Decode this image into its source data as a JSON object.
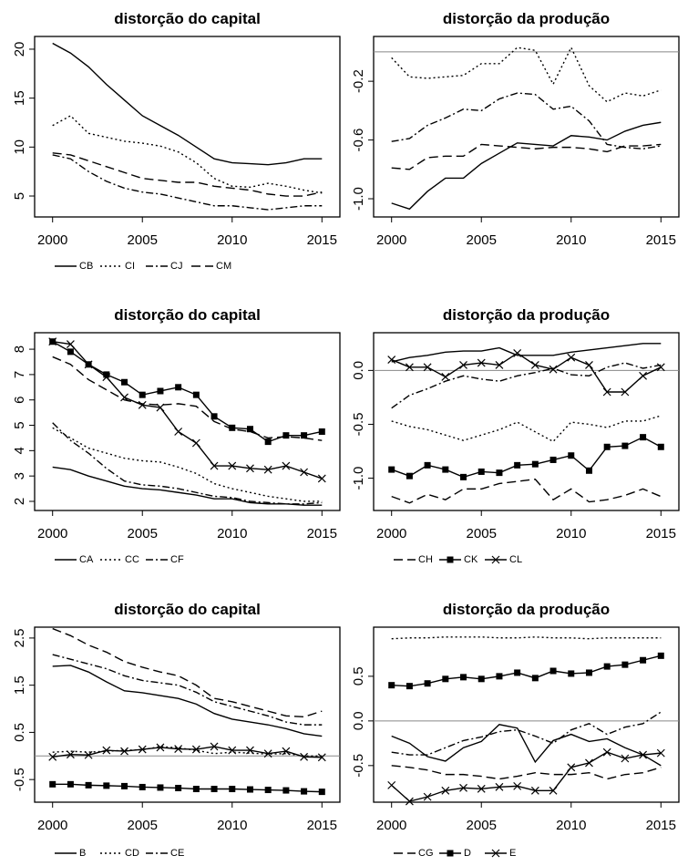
{
  "chart_data": [
    {
      "type": "line",
      "title": "distorção do capital",
      "x": [
        2000,
        2001,
        2002,
        2003,
        2004,
        2005,
        2006,
        2007,
        2008,
        2009,
        2010,
        2011,
        2012,
        2013,
        2014,
        2015
      ],
      "xlim": [
        1999,
        2016
      ],
      "xticks": [
        2000,
        2005,
        2010,
        2015
      ],
      "ylim": [
        2.86,
        21.3
      ],
      "yticks": [
        5,
        10,
        15,
        20
      ],
      "series": [
        {
          "name": "CB",
          "color": "#000000",
          "dash": "solid",
          "values": [
            20.6,
            19.6,
            18.2,
            16.4,
            14.8,
            13.2,
            12.2,
            11.2,
            10,
            8.8,
            8.4,
            8.3,
            8.2,
            8.4,
            8.8,
            8.8
          ]
        },
        {
          "name": "CI",
          "color": "#000000",
          "dash": "dotted",
          "values": [
            12.2,
            13.2,
            11.4,
            11,
            10.6,
            10.4,
            10.1,
            9.5,
            8.4,
            6.8,
            6.0,
            5.9,
            6.3,
            6.0,
            5.6,
            5.3
          ]
        },
        {
          "name": "CJ",
          "color": "#000000",
          "dash": "dashdot",
          "values": [
            9.2,
            8.8,
            7.5,
            6.5,
            5.8,
            5.4,
            5.2,
            4.8,
            4.4,
            4.0,
            4.0,
            3.8,
            3.6,
            3.8,
            4.0,
            4.0
          ]
        },
        {
          "name": "CM",
          "color": "#000000",
          "dash": "longdash",
          "values": [
            9.4,
            9.2,
            8.6,
            8,
            7.4,
            6.8,
            6.6,
            6.4,
            6.4,
            6.0,
            5.8,
            5.6,
            5.2,
            5.0,
            5.0,
            5.4
          ]
        }
      ]
    },
    {
      "type": "line",
      "title": "distorção da produção",
      "x": [
        2000,
        2001,
        2002,
        2003,
        2004,
        2005,
        2006,
        2007,
        2008,
        2009,
        2010,
        2011,
        2012,
        2013,
        2014,
        2015
      ],
      "xlim": [
        1999,
        2016
      ],
      "xticks": [
        2000,
        2005,
        2010,
        2015
      ],
      "ylim": [
        -1.124,
        0.105
      ],
      "yticks": [
        {
          "value": -1.0,
          "label": "-1.0"
        },
        -0.6,
        -0.2
      ],
      "hline": 0,
      "series": [
        {
          "color": "#000000",
          "dash": "solid",
          "values": [
            -1.03,
            -1.07,
            -0.95,
            -0.86,
            -0.86,
            -0.76,
            -0.69,
            -0.62,
            -0.63,
            -0.64,
            -0.57,
            -0.58,
            -0.6,
            -0.54,
            -0.5,
            -0.48
          ]
        },
        {
          "color": "#000000",
          "dash": "dotted",
          "values": [
            -0.04,
            -0.17,
            -0.18,
            -0.17,
            -0.16,
            -0.08,
            -0.08,
            0.03,
            0.01,
            -0.22,
            0.03,
            -0.23,
            -0.34,
            -0.28,
            -0.3,
            -0.26
          ]
        },
        {
          "color": "#000000",
          "dash": "dashdot",
          "values": [
            -0.61,
            -0.59,
            -0.5,
            -0.45,
            -0.39,
            -0.4,
            -0.32,
            -0.28,
            -0.29,
            -0.39,
            -0.37,
            -0.47,
            -0.63,
            -0.65,
            -0.66,
            -0.64
          ]
        },
        {
          "color": "#000000",
          "dash": "longdash",
          "values": [
            -0.79,
            -0.8,
            -0.72,
            -0.71,
            -0.71,
            -0.63,
            -0.64,
            -0.65,
            -0.66,
            -0.65,
            -0.65,
            -0.66,
            -0.68,
            -0.64,
            -0.64,
            -0.63
          ]
        }
      ]
    },
    {
      "type": "line",
      "title": "distorção do capital",
      "x": [
        2000,
        2001,
        2002,
        2003,
        2004,
        2005,
        2006,
        2007,
        2008,
        2009,
        2010,
        2011,
        2012,
        2013,
        2014,
        2015
      ],
      "xlim": [
        1999,
        2016
      ],
      "xticks": [
        2000,
        2005,
        2010,
        2015
      ],
      "ylim": [
        1.64,
        8.65
      ],
      "yticks": [
        2,
        3,
        4,
        5,
        6,
        7,
        8
      ],
      "series": [
        {
          "name": "CA",
          "color": "#000000",
          "dash": "solid",
          "values": [
            3.35,
            3.25,
            3.0,
            2.8,
            2.6,
            2.5,
            2.45,
            2.35,
            2.25,
            2.1,
            2.1,
            1.95,
            1.9,
            1.9,
            1.85,
            1.85
          ]
        },
        {
          "name": "CC",
          "color": "#000000",
          "dash": "dotted",
          "values": [
            4.9,
            4.5,
            4.1,
            3.9,
            3.7,
            3.6,
            3.55,
            3.35,
            3.1,
            2.7,
            2.5,
            2.35,
            2.2,
            2.1,
            2.0,
            2.0
          ]
        },
        {
          "name": "CF",
          "color": "#000000",
          "dash": "dashdot",
          "values": [
            5.1,
            4.4,
            3.9,
            3.3,
            2.8,
            2.65,
            2.6,
            2.5,
            2.35,
            2.2,
            2.15,
            2.0,
            1.95,
            1.9,
            1.9,
            1.95
          ]
        },
        {
          "name": "CH",
          "color": "#000000",
          "dash": "longdash",
          "values": [
            7.7,
            7.4,
            6.8,
            6.4,
            6.0,
            5.85,
            5.8,
            5.85,
            5.75,
            5.15,
            4.85,
            4.75,
            4.5,
            4.55,
            4.5,
            4.4
          ]
        },
        {
          "name": "CK",
          "color": "#000000",
          "dash": "solid",
          "marker": "square",
          "values": [
            8.3,
            7.9,
            7.4,
            7.0,
            6.7,
            6.2,
            6.35,
            6.5,
            6.2,
            5.35,
            4.9,
            4.85,
            4.35,
            4.6,
            4.6,
            4.75
          ]
        },
        {
          "name": "CL",
          "color": "#000000",
          "dash": "solid",
          "marker": "x",
          "values": [
            8.3,
            8.2,
            7.4,
            6.9,
            6.1,
            5.8,
            5.7,
            4.75,
            4.3,
            3.4,
            3.4,
            3.3,
            3.25,
            3.4,
            3.15,
            2.9
          ]
        }
      ]
    },
    {
      "type": "line",
      "title": "distorção da produção",
      "x": [
        2000,
        2001,
        2002,
        2003,
        2004,
        2005,
        2006,
        2007,
        2008,
        2009,
        2010,
        2011,
        2012,
        2013,
        2014,
        2015
      ],
      "xlim": [
        1999,
        2016
      ],
      "xticks": [
        2000,
        2005,
        2010,
        2015
      ],
      "ylim": [
        -1.3,
        0.35
      ],
      "yticks": [
        {
          "value": -1.0,
          "label": "-1.0"
        },
        -0.5,
        {
          "value": 0,
          "label": "0.0"
        }
      ],
      "hline": 0,
      "series": [
        {
          "color": "#000000",
          "dash": "solid",
          "values": [
            0.08,
            0.12,
            0.14,
            0.17,
            0.18,
            0.18,
            0.21,
            0.14,
            0.14,
            0.14,
            0.17,
            0.19,
            0.21,
            0.23,
            0.25,
            0.25
          ]
        },
        {
          "color": "#000000",
          "dash": "dotted",
          "values": [
            -0.47,
            -0.52,
            -0.55,
            -0.6,
            -0.65,
            -0.6,
            -0.55,
            -0.48,
            -0.57,
            -0.66,
            -0.48,
            -0.5,
            -0.53,
            -0.47,
            -0.47,
            -0.42
          ]
        },
        {
          "color": "#000000",
          "dash": "dashdot",
          "values": [
            -0.35,
            -0.23,
            -0.17,
            -0.1,
            -0.05,
            -0.08,
            -0.1,
            -0.05,
            -0.02,
            0.02,
            -0.04,
            -0.05,
            0.03,
            0.07,
            0.02,
            0.05
          ]
        },
        {
          "color": "#000000",
          "dash": "longdash",
          "values": [
            -1.17,
            -1.23,
            -1.15,
            -1.2,
            -1.1,
            -1.1,
            -1.05,
            -1.03,
            -1.01,
            -1.2,
            -1.1,
            -1.22,
            -1.2,
            -1.16,
            -1.1,
            -1.17
          ]
        },
        {
          "color": "#000000",
          "dash": "solid",
          "marker": "square",
          "values": [
            -0.92,
            -0.98,
            -0.88,
            -0.92,
            -0.99,
            -0.94,
            -0.95,
            -0.88,
            -0.87,
            -0.83,
            -0.79,
            -0.93,
            -0.71,
            -0.7,
            -0.62,
            -0.71
          ]
        },
        {
          "color": "#000000",
          "dash": "solid",
          "marker": "x",
          "values": [
            0.1,
            0.03,
            0.03,
            -0.06,
            0.05,
            0.07,
            0.05,
            0.16,
            0.05,
            0.01,
            0.12,
            0.05,
            -0.2,
            -0.2,
            -0.05,
            0.03
          ]
        }
      ]
    },
    {
      "type": "line",
      "title": "distorção do capital",
      "x": [
        2000,
        2001,
        2002,
        2003,
        2004,
        2005,
        2006,
        2007,
        2008,
        2009,
        2010,
        2011,
        2012,
        2013,
        2014,
        2015
      ],
      "xlim": [
        1999,
        2016
      ],
      "xticks": [
        2000,
        2005,
        2010,
        2015
      ],
      "ylim": [
        -0.98,
        2.73
      ],
      "yticks": [
        -0.5,
        0.5,
        1.5,
        2.5
      ],
      "hline": 0,
      "series": [
        {
          "name": "B",
          "color": "#000000",
          "dash": "solid",
          "values": [
            1.9,
            1.92,
            1.78,
            1.57,
            1.38,
            1.34,
            1.28,
            1.22,
            1.1,
            0.9,
            0.78,
            0.72,
            0.66,
            0.58,
            0.47,
            0.42
          ]
        },
        {
          "name": "CD",
          "color": "#000000",
          "dash": "dotted",
          "values": [
            0.08,
            0.1,
            0.08,
            0.1,
            0.12,
            0.13,
            0.2,
            0.17,
            0.12,
            0.05,
            0.08,
            0.06,
            0.04,
            0.05,
            0.0,
            0.0
          ]
        },
        {
          "name": "CE",
          "color": "#000000",
          "dash": "dashdot",
          "values": [
            2.15,
            2.05,
            1.95,
            1.85,
            1.7,
            1.6,
            1.55,
            1.5,
            1.35,
            1.15,
            1.05,
            0.95,
            0.85,
            0.72,
            0.66,
            0.66
          ]
        },
        {
          "name": "CG",
          "color": "#000000",
          "dash": "longdash",
          "values": [
            2.7,
            2.55,
            2.35,
            2.2,
            2.0,
            1.88,
            1.78,
            1.7,
            1.5,
            1.22,
            1.15,
            1.05,
            0.95,
            0.85,
            0.83,
            0.95
          ]
        },
        {
          "name": "D",
          "color": "#000000",
          "dash": "solid",
          "marker": "square",
          "values": [
            -0.6,
            -0.6,
            -0.62,
            -0.63,
            -0.64,
            -0.66,
            -0.67,
            -0.68,
            -0.7,
            -0.7,
            -0.7,
            -0.71,
            -0.72,
            -0.73,
            -0.75,
            -0.76
          ]
        },
        {
          "name": "E",
          "color": "#000000",
          "dash": "solid",
          "marker": "x",
          "values": [
            -0.02,
            0.03,
            0.02,
            0.12,
            0.1,
            0.14,
            0.18,
            0.15,
            0.14,
            0.2,
            0.12,
            0.12,
            0.05,
            0.1,
            -0.02,
            -0.03
          ]
        }
      ]
    },
    {
      "type": "line",
      "title": "distorção da produção",
      "x": [
        2000,
        2001,
        2002,
        2003,
        2004,
        2005,
        2006,
        2007,
        2008,
        2009,
        2010,
        2011,
        2012,
        2013,
        2014,
        2015
      ],
      "xlim": [
        1999,
        2016
      ],
      "xticks": [
        2000,
        2005,
        2010,
        2015
      ],
      "ylim": [
        -0.91,
        1.05
      ],
      "yticks": [
        -0.5,
        {
          "value": 0,
          "label": "0.0"
        },
        0.5
      ],
      "hline": 0,
      "series": [
        {
          "color": "#000000",
          "dash": "solid",
          "values": [
            -0.17,
            -0.25,
            -0.4,
            -0.45,
            -0.3,
            -0.23,
            -0.04,
            -0.08,
            -0.46,
            -0.22,
            -0.15,
            -0.23,
            -0.2,
            -0.3,
            -0.38,
            -0.5
          ]
        },
        {
          "color": "#000000",
          "dash": "dotted",
          "values": [
            0.92,
            0.93,
            0.93,
            0.94,
            0.94,
            0.94,
            0.93,
            0.93,
            0.94,
            0.93,
            0.93,
            0.92,
            0.93,
            0.93,
            0.93,
            0.93
          ]
        },
        {
          "color": "#000000",
          "dash": "dashdot",
          "values": [
            -0.35,
            -0.38,
            -0.38,
            -0.3,
            -0.22,
            -0.18,
            -0.12,
            -0.1,
            -0.17,
            -0.25,
            -0.1,
            -0.03,
            -0.15,
            -0.07,
            -0.03,
            0.1
          ]
        },
        {
          "color": "#000000",
          "dash": "longdash",
          "values": [
            -0.5,
            -0.52,
            -0.55,
            -0.6,
            -0.6,
            -0.62,
            -0.65,
            -0.62,
            -0.58,
            -0.6,
            -0.6,
            -0.58,
            -0.65,
            -0.6,
            -0.58,
            -0.52
          ]
        },
        {
          "color": "#000000",
          "dash": "solid",
          "marker": "square",
          "values": [
            0.4,
            0.39,
            0.42,
            0.47,
            0.49,
            0.47,
            0.5,
            0.54,
            0.48,
            0.56,
            0.53,
            0.54,
            0.61,
            0.63,
            0.68,
            0.73
          ]
        },
        {
          "color": "#000000",
          "dash": "solid",
          "marker": "x",
          "values": [
            -0.72,
            -0.9,
            -0.85,
            -0.78,
            -0.75,
            -0.76,
            -0.74,
            -0.73,
            -0.78,
            -0.78,
            -0.52,
            -0.47,
            -0.35,
            -0.42,
            -0.38,
            -0.36
          ]
        }
      ]
    }
  ]
}
